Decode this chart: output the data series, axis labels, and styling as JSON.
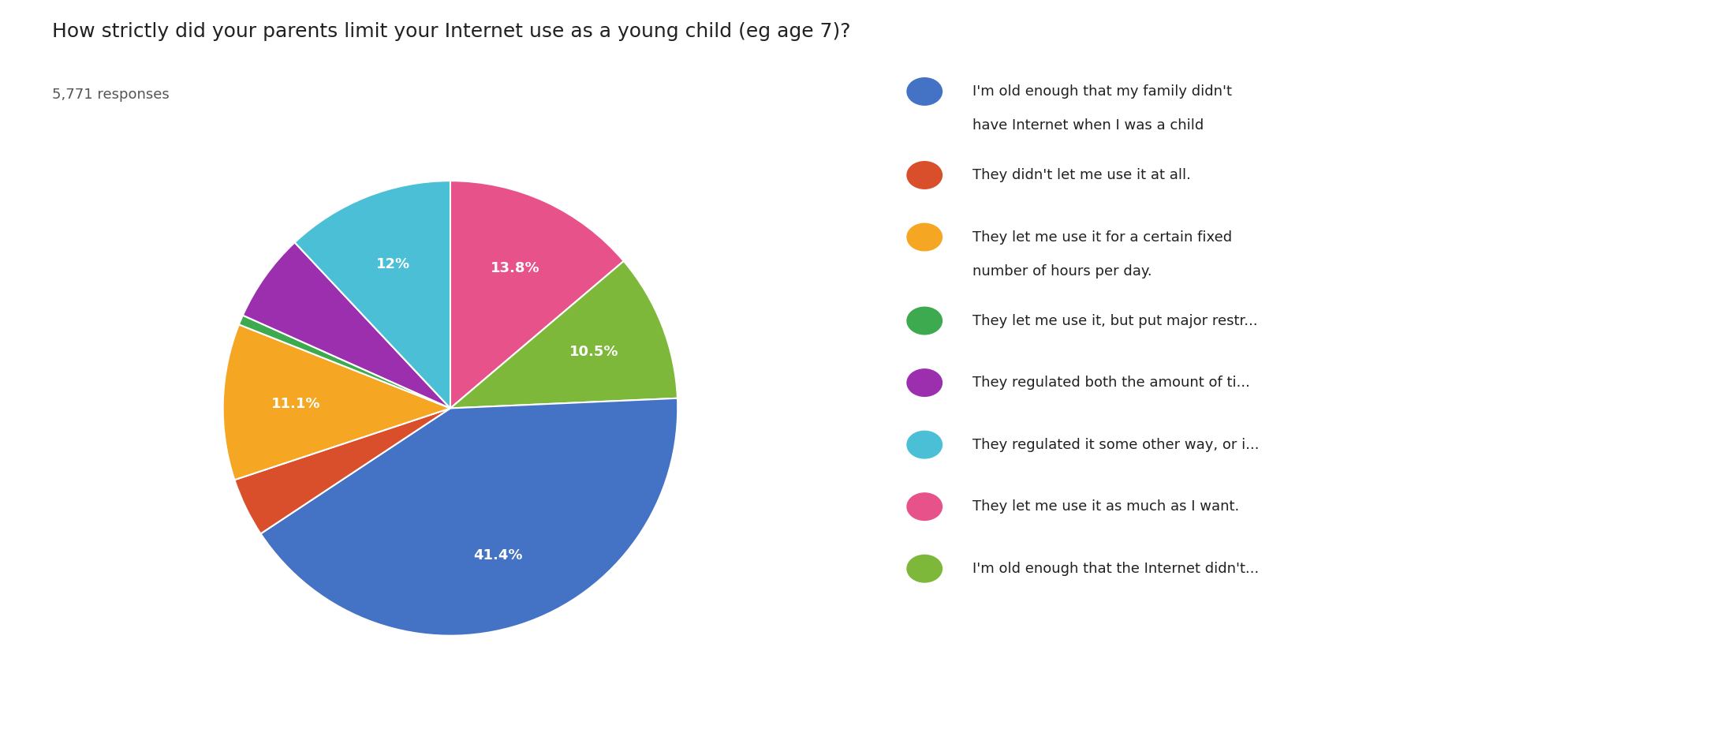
{
  "title": "How strictly did your parents limit your Internet use as a young child (eg age 7)?",
  "subtitle": "5,771 responses",
  "ordered_sizes": [
    12.0,
    13.8,
    10.5,
    41.4,
    4.2,
    11.1,
    0.7,
    6.3
  ],
  "ordered_colors": [
    "#4BBFD6",
    "#E8528A",
    "#7DB83A",
    "#4472C4",
    "#D94F2B",
    "#F5A623",
    "#3DAA4F",
    "#9B2FAE"
  ],
  "ordered_pct_labels": [
    "12%",
    "13.8%",
    "10.5%",
    "41.4%",
    "",
    "11.1%",
    "",
    ""
  ],
  "startangle": 90,
  "legend_labels": [
    "I'm old enough that my family didn't\nhave Internet when I was a child",
    "They didn't let me use it at all.",
    "They let me use it for a certain fixed\nnumber of hours per day.",
    "They let me use it, but put major restr...",
    "They regulated both the amount of ti...",
    "They regulated it some other way, or i...",
    "They let me use it as much as I want.",
    "I'm old enough that the Internet didn't..."
  ],
  "legend_colors": [
    "#4472C4",
    "#D94F2B",
    "#F5A623",
    "#3DAA4F",
    "#9B2FAE",
    "#4BBFD6",
    "#E8528A",
    "#7DB83A"
  ],
  "title_fontsize": 18,
  "subtitle_fontsize": 13,
  "label_fontsize": 13,
  "legend_fontsize": 13,
  "background_color": "#FFFFFF"
}
